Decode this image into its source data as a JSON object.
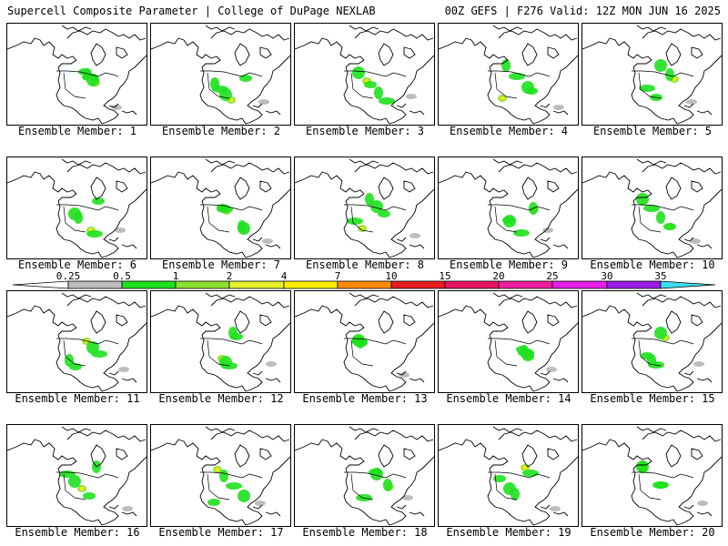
{
  "header": {
    "left": "Supercell Composite Parameter | College of DuPage NEXLAB",
    "right": "00Z GEFS | F276 Valid: 12Z MON JUN 16 2025"
  },
  "colorbar": {
    "ticks": [
      "0.25",
      "0.5",
      "1",
      "2",
      "4",
      "7",
      "10",
      "15",
      "20",
      "25",
      "30",
      "35"
    ],
    "colors": [
      "#bdbdbd",
      "#1ee11e",
      "#8ce12d",
      "#e6f02d",
      "#ffeb00",
      "#ff8c00",
      "#e61e1e",
      "#e61464",
      "#f01ea0",
      "#e61ee6",
      "#9b1ee6",
      "#b478dc",
      "#3cdcf0"
    ]
  },
  "members": [
    {
      "label": "Ensemble Member: 1"
    },
    {
      "label": "Ensemble Member: 2"
    },
    {
      "label": "Ensemble Member: 3"
    },
    {
      "label": "Ensemble Member: 4"
    },
    {
      "label": "Ensemble Member: 5"
    },
    {
      "label": "Ensemble Member: 6"
    },
    {
      "label": "Ensemble Member: 7"
    },
    {
      "label": "Ensemble Member: 8"
    },
    {
      "label": "Ensemble Member: 9"
    },
    {
      "label": "Ensemble Member: 10"
    },
    {
      "label": "Ensemble Member: 11"
    },
    {
      "label": "Ensemble Member: 12"
    },
    {
      "label": "Ensemble Member: 13"
    },
    {
      "label": "Ensemble Member: 14"
    },
    {
      "label": "Ensemble Member: 15"
    },
    {
      "label": "Ensemble Member: 16"
    },
    {
      "label": "Ensemble Member: 17"
    },
    {
      "label": "Ensemble Member: 18"
    },
    {
      "label": "Ensemble Member: 19"
    },
    {
      "label": "Ensemble Member: 20"
    }
  ]
}
